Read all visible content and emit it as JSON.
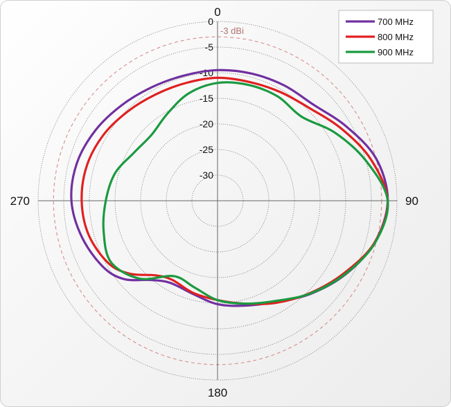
{
  "chart_data": {
    "type": "polar-line",
    "title": "",
    "angle_labels": {
      "top": "0",
      "right": "90",
      "bottom": "180",
      "left": "270"
    },
    "radial_ticks": [
      0,
      -5,
      -10,
      -15,
      -20,
      -25,
      -30
    ],
    "radial_range": [
      -35,
      0
    ],
    "reference_circle": {
      "value": -3,
      "label": "-3 dBi",
      "color": "#d98b8b"
    },
    "grid": true,
    "legend_position": "top-right",
    "series": [
      {
        "name": "700 MHz",
        "color": "#7030a0",
        "points": [
          [
            0,
            -9.5
          ],
          [
            15,
            -9.3
          ],
          [
            30,
            -9
          ],
          [
            45,
            -8.5
          ],
          [
            60,
            -6
          ],
          [
            75,
            -3
          ],
          [
            90,
            -1.8
          ],
          [
            105,
            -3.3
          ],
          [
            120,
            -6.2
          ],
          [
            135,
            -9.3
          ],
          [
            150,
            -12.2
          ],
          [
            165,
            -13.8
          ],
          [
            180,
            -14.8
          ],
          [
            195,
            -16.2
          ],
          [
            210,
            -16.5
          ],
          [
            220,
            -14.8
          ],
          [
            230,
            -11.2
          ],
          [
            240,
            -9.2
          ],
          [
            255,
            -7.6
          ],
          [
            270,
            -6.5
          ],
          [
            285,
            -6.6
          ],
          [
            300,
            -7.5
          ],
          [
            315,
            -8.6
          ],
          [
            330,
            -9.4
          ],
          [
            345,
            -9.7
          ],
          [
            360,
            -9.5
          ]
        ]
      },
      {
        "name": "800 MHz",
        "color": "#e02020",
        "points": [
          [
            0,
            -11
          ],
          [
            15,
            -11
          ],
          [
            30,
            -10.5
          ],
          [
            45,
            -9.5
          ],
          [
            60,
            -7
          ],
          [
            75,
            -4
          ],
          [
            90,
            -1.8
          ],
          [
            105,
            -3.3
          ],
          [
            120,
            -6.6
          ],
          [
            135,
            -9.5
          ],
          [
            150,
            -12
          ],
          [
            165,
            -14.2
          ],
          [
            180,
            -15.6
          ],
          [
            195,
            -16.4
          ],
          [
            210,
            -17.2
          ],
          [
            220,
            -16
          ],
          [
            230,
            -12.8
          ],
          [
            240,
            -10.5
          ],
          [
            255,
            -9
          ],
          [
            270,
            -8.5
          ],
          [
            285,
            -8.6
          ],
          [
            300,
            -9.3
          ],
          [
            315,
            -10.3
          ],
          [
            330,
            -11
          ],
          [
            345,
            -11.2
          ],
          [
            360,
            -11
          ]
        ]
      },
      {
        "name": "900 MHz",
        "color": "#1a9a40",
        "points": [
          [
            0,
            -12
          ],
          [
            15,
            -11.6
          ],
          [
            30,
            -11.5
          ],
          [
            45,
            -11.8
          ],
          [
            60,
            -8.5
          ],
          [
            75,
            -5
          ],
          [
            90,
            -1.8
          ],
          [
            105,
            -3.2
          ],
          [
            120,
            -6.3
          ],
          [
            135,
            -9.4
          ],
          [
            150,
            -12.4
          ],
          [
            165,
            -14.2
          ],
          [
            180,
            -15.6
          ],
          [
            195,
            -17.5
          ],
          [
            210,
            -18
          ],
          [
            225,
            -13.5
          ],
          [
            240,
            -11
          ],
          [
            255,
            -12
          ],
          [
            270,
            -13.2
          ],
          [
            285,
            -14.3
          ],
          [
            300,
            -16.2
          ],
          [
            315,
            -16.8
          ],
          [
            330,
            -15.4
          ],
          [
            345,
            -13.3
          ],
          [
            360,
            -12
          ]
        ]
      }
    ]
  }
}
